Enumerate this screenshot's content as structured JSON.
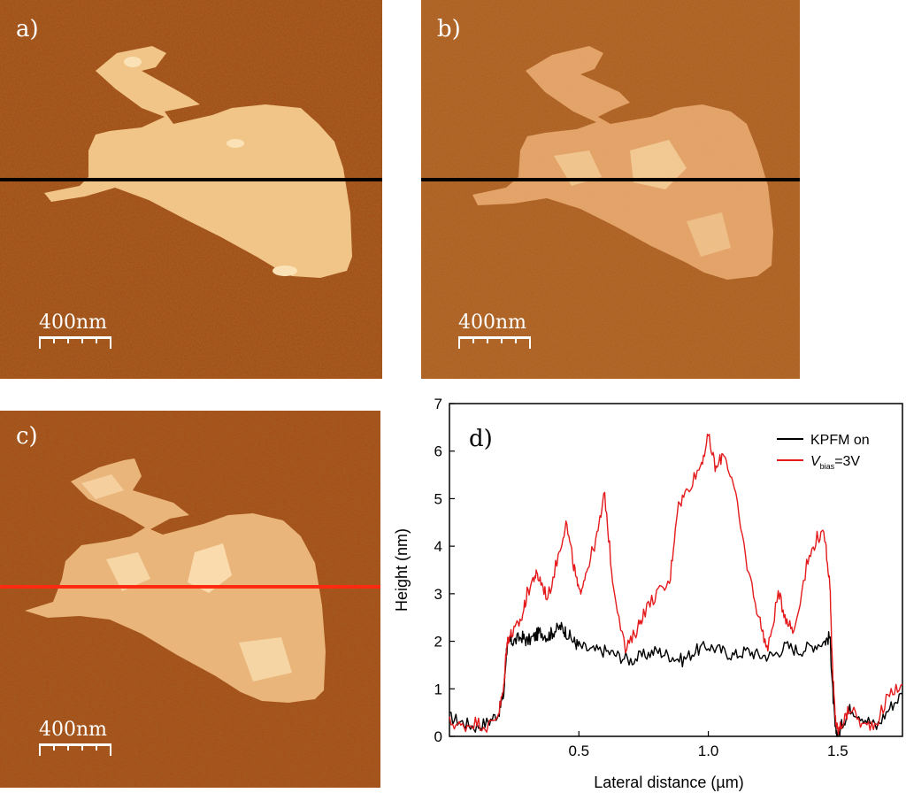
{
  "panels": {
    "a": {
      "label": "a)",
      "scalebar": "400nm"
    },
    "b": {
      "label": "b)",
      "scalebar": "400nm"
    },
    "c": {
      "label": "c)",
      "scalebar": "400nm"
    }
  },
  "colors": {
    "substrate": "#a24a12",
    "flake": "#f1c488",
    "flake_bright": "#fbe2b6",
    "line_ab": "#000000",
    "line_c": "#ff2a10",
    "series_kpfm": "#000000",
    "series_vbias": "#e41a1c"
  },
  "chart_data": {
    "type": "line",
    "panel_label": "d)",
    "xlabel": "Lateral distance (µm)",
    "ylabel": "Height (nm)",
    "xlim": [
      0,
      1.75
    ],
    "ylim": [
      0,
      7
    ],
    "xticks": [
      "0.5",
      "1.0",
      "1.5"
    ],
    "yticks": [
      "0",
      "1",
      "2",
      "3",
      "4",
      "5",
      "6",
      "7"
    ],
    "legend": {
      "position": "top-right",
      "kpfm": "KPFM on",
      "vbias_main": "V",
      "vbias_sub": "bias",
      "vbias_tail": "=3V"
    },
    "series": [
      {
        "name": "KPFM on",
        "color": "#000000",
        "x": [
          0.0,
          0.05,
          0.1,
          0.15,
          0.19,
          0.21,
          0.22,
          0.23,
          0.25,
          0.28,
          0.3,
          0.33,
          0.35,
          0.38,
          0.4,
          0.43,
          0.45,
          0.48,
          0.5,
          0.55,
          0.6,
          0.65,
          0.7,
          0.75,
          0.8,
          0.85,
          0.9,
          0.95,
          1.0,
          1.05,
          1.1,
          1.15,
          1.2,
          1.25,
          1.3,
          1.35,
          1.4,
          1.45,
          1.47,
          1.48,
          1.49,
          1.5,
          1.52,
          1.55,
          1.6,
          1.65,
          1.7,
          1.75
        ],
        "y": [
          0.4,
          0.3,
          0.2,
          0.3,
          0.5,
          0.9,
          1.8,
          2.0,
          2.0,
          2.1,
          2.0,
          2.1,
          2.2,
          2.1,
          2.2,
          2.3,
          2.2,
          2.0,
          1.9,
          1.8,
          1.8,
          1.7,
          1.6,
          1.7,
          1.8,
          1.7,
          1.6,
          1.8,
          1.9,
          1.8,
          1.7,
          1.8,
          1.7,
          1.7,
          1.9,
          1.8,
          1.9,
          2.0,
          2.1,
          1.0,
          0.2,
          0.0,
          0.3,
          0.6,
          0.4,
          0.2,
          0.6,
          0.9
        ]
      },
      {
        "name": "Vbias=3V",
        "color": "#e41a1c",
        "x": [
          0.0,
          0.05,
          0.1,
          0.15,
          0.19,
          0.21,
          0.22,
          0.23,
          0.25,
          0.28,
          0.3,
          0.33,
          0.35,
          0.38,
          0.42,
          0.45,
          0.48,
          0.5,
          0.53,
          0.57,
          0.6,
          0.63,
          0.68,
          0.72,
          0.75,
          0.8,
          0.85,
          0.88,
          0.92,
          0.97,
          1.0,
          1.03,
          1.06,
          1.1,
          1.15,
          1.2,
          1.23,
          1.27,
          1.3,
          1.33,
          1.38,
          1.42,
          1.45,
          1.47,
          1.48,
          1.49,
          1.5,
          1.52,
          1.55,
          1.6,
          1.65,
          1.7,
          1.75
        ],
        "y": [
          0.3,
          0.2,
          0.3,
          0.2,
          0.5,
          1.0,
          1.9,
          2.1,
          2.2,
          2.5,
          3.0,
          3.4,
          3.3,
          2.9,
          3.8,
          4.5,
          3.6,
          3.0,
          3.5,
          4.2,
          5.1,
          3.3,
          1.8,
          2.2,
          2.6,
          3.0,
          3.2,
          4.8,
          5.2,
          5.7,
          6.3,
          5.6,
          6.0,
          5.2,
          3.6,
          2.4,
          1.8,
          3.0,
          2.5,
          2.2,
          3.6,
          4.2,
          4.2,
          3.2,
          1.4,
          0.4,
          0.1,
          0.3,
          0.6,
          0.2,
          0.3,
          0.9,
          1.1
        ]
      }
    ]
  }
}
